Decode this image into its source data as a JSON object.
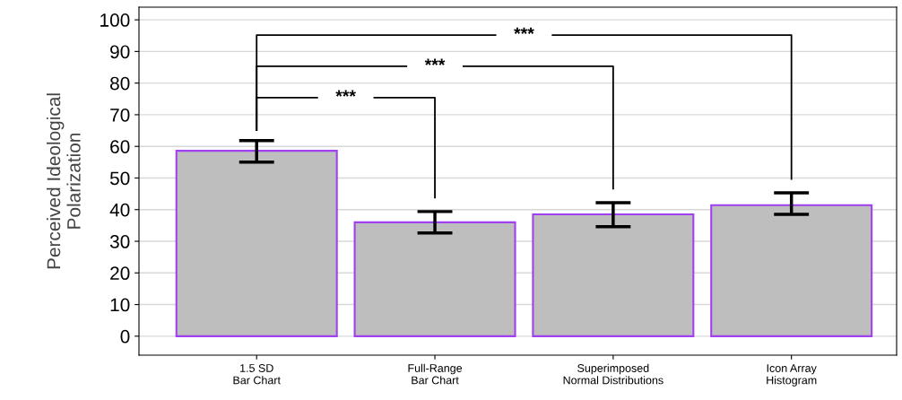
{
  "chart_data": {
    "type": "bar",
    "ylabel": "Perceived Ideological\nPolarization",
    "categories": [
      "1.5 SD\nBar Chart",
      "Full-Range\nBar Chart",
      "Superimposed\nNormal Distributions",
      "Icon Array\nHistogram"
    ],
    "values": [
      58.6,
      36.0,
      38.5,
      41.4
    ],
    "errors": [
      [
        55.0,
        61.8
      ],
      [
        32.6,
        39.4
      ],
      [
        34.6,
        42.2
      ],
      [
        38.5,
        45.3
      ]
    ],
    "color": "#bebebe",
    "ylim": [
      -6,
      104
    ],
    "yticks": [
      0,
      10,
      20,
      30,
      40,
      50,
      60,
      70,
      80,
      90,
      100
    ],
    "grid": "y",
    "annotations": [
      "***",
      "***",
      "***"
    ]
  }
}
